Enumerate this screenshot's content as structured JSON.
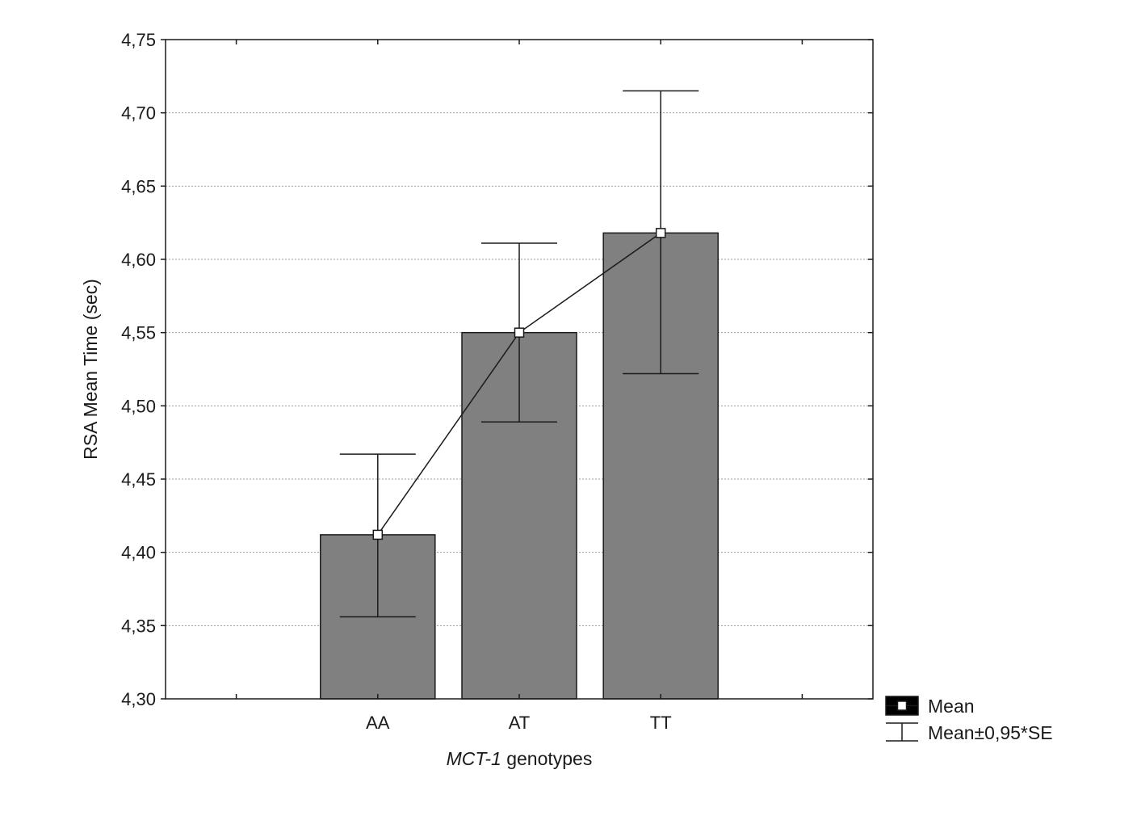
{
  "chart_data": {
    "type": "bar",
    "categories": [
      "AA",
      "AT",
      "TT"
    ],
    "series": [
      {
        "values": [
          4.412,
          4.55,
          4.618
        ],
        "error_low": [
          4.356,
          4.489,
          4.522
        ],
        "error_high": [
          4.467,
          4.611,
          4.715
        ]
      }
    ],
    "ylabel": "RSA Mean Time (sec)",
    "xlabel_italic": "MCT-1",
    "xlabel_rest": " genotypes",
    "ylim": [
      4.3,
      4.75
    ],
    "yticks": [
      "4,30",
      "4,35",
      "4,40",
      "4,45",
      "4,50",
      "4,55",
      "4,60",
      "4,65",
      "4,70",
      "4,75"
    ],
    "grid": true,
    "legend_position": "bottom-right outside",
    "legend": [
      "Mean",
      "Mean±0,95*SE"
    ],
    "colors": {
      "bar": "#808080",
      "line": "#1a1a1a",
      "marker": "#ffffff",
      "grid": "#9a9a9a"
    }
  }
}
